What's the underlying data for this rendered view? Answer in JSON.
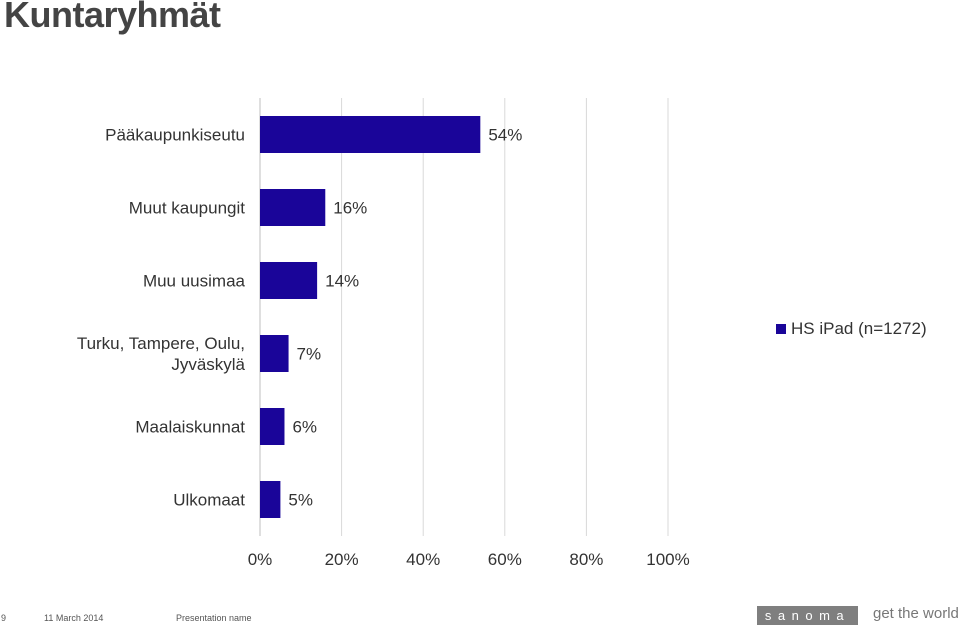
{
  "page": {
    "title": "Kuntaryhmät"
  },
  "chart_data": {
    "type": "bar",
    "orientation": "horizontal",
    "categories": [
      "Pääkaupunkiseutu",
      "Muut kaupungit",
      "Muu uusimaa",
      "Turku, Tampere, Oulu, Jyväskylä",
      "Maalaiskunnat",
      "Ulkomaat"
    ],
    "series": [
      {
        "name": "HS iPad (n=1272)",
        "values": [
          54,
          16,
          14,
          7,
          6,
          5
        ],
        "color": "#1a0599"
      }
    ],
    "value_labels": [
      "54%",
      "16%",
      "14%",
      "7%",
      "6%",
      "5%"
    ],
    "xlim": [
      0,
      100
    ],
    "xticks": [
      0,
      20,
      40,
      60,
      80,
      100
    ],
    "xtick_labels": [
      "0%",
      "20%",
      "40%",
      "60%",
      "80%",
      "100%"
    ],
    "grid": true,
    "legend_position": "right"
  },
  "footer": {
    "page_number": "9",
    "date": "11 March 2014",
    "presentation_name": "Presentation name",
    "brand": "sanoma",
    "tagline": "get the world"
  }
}
